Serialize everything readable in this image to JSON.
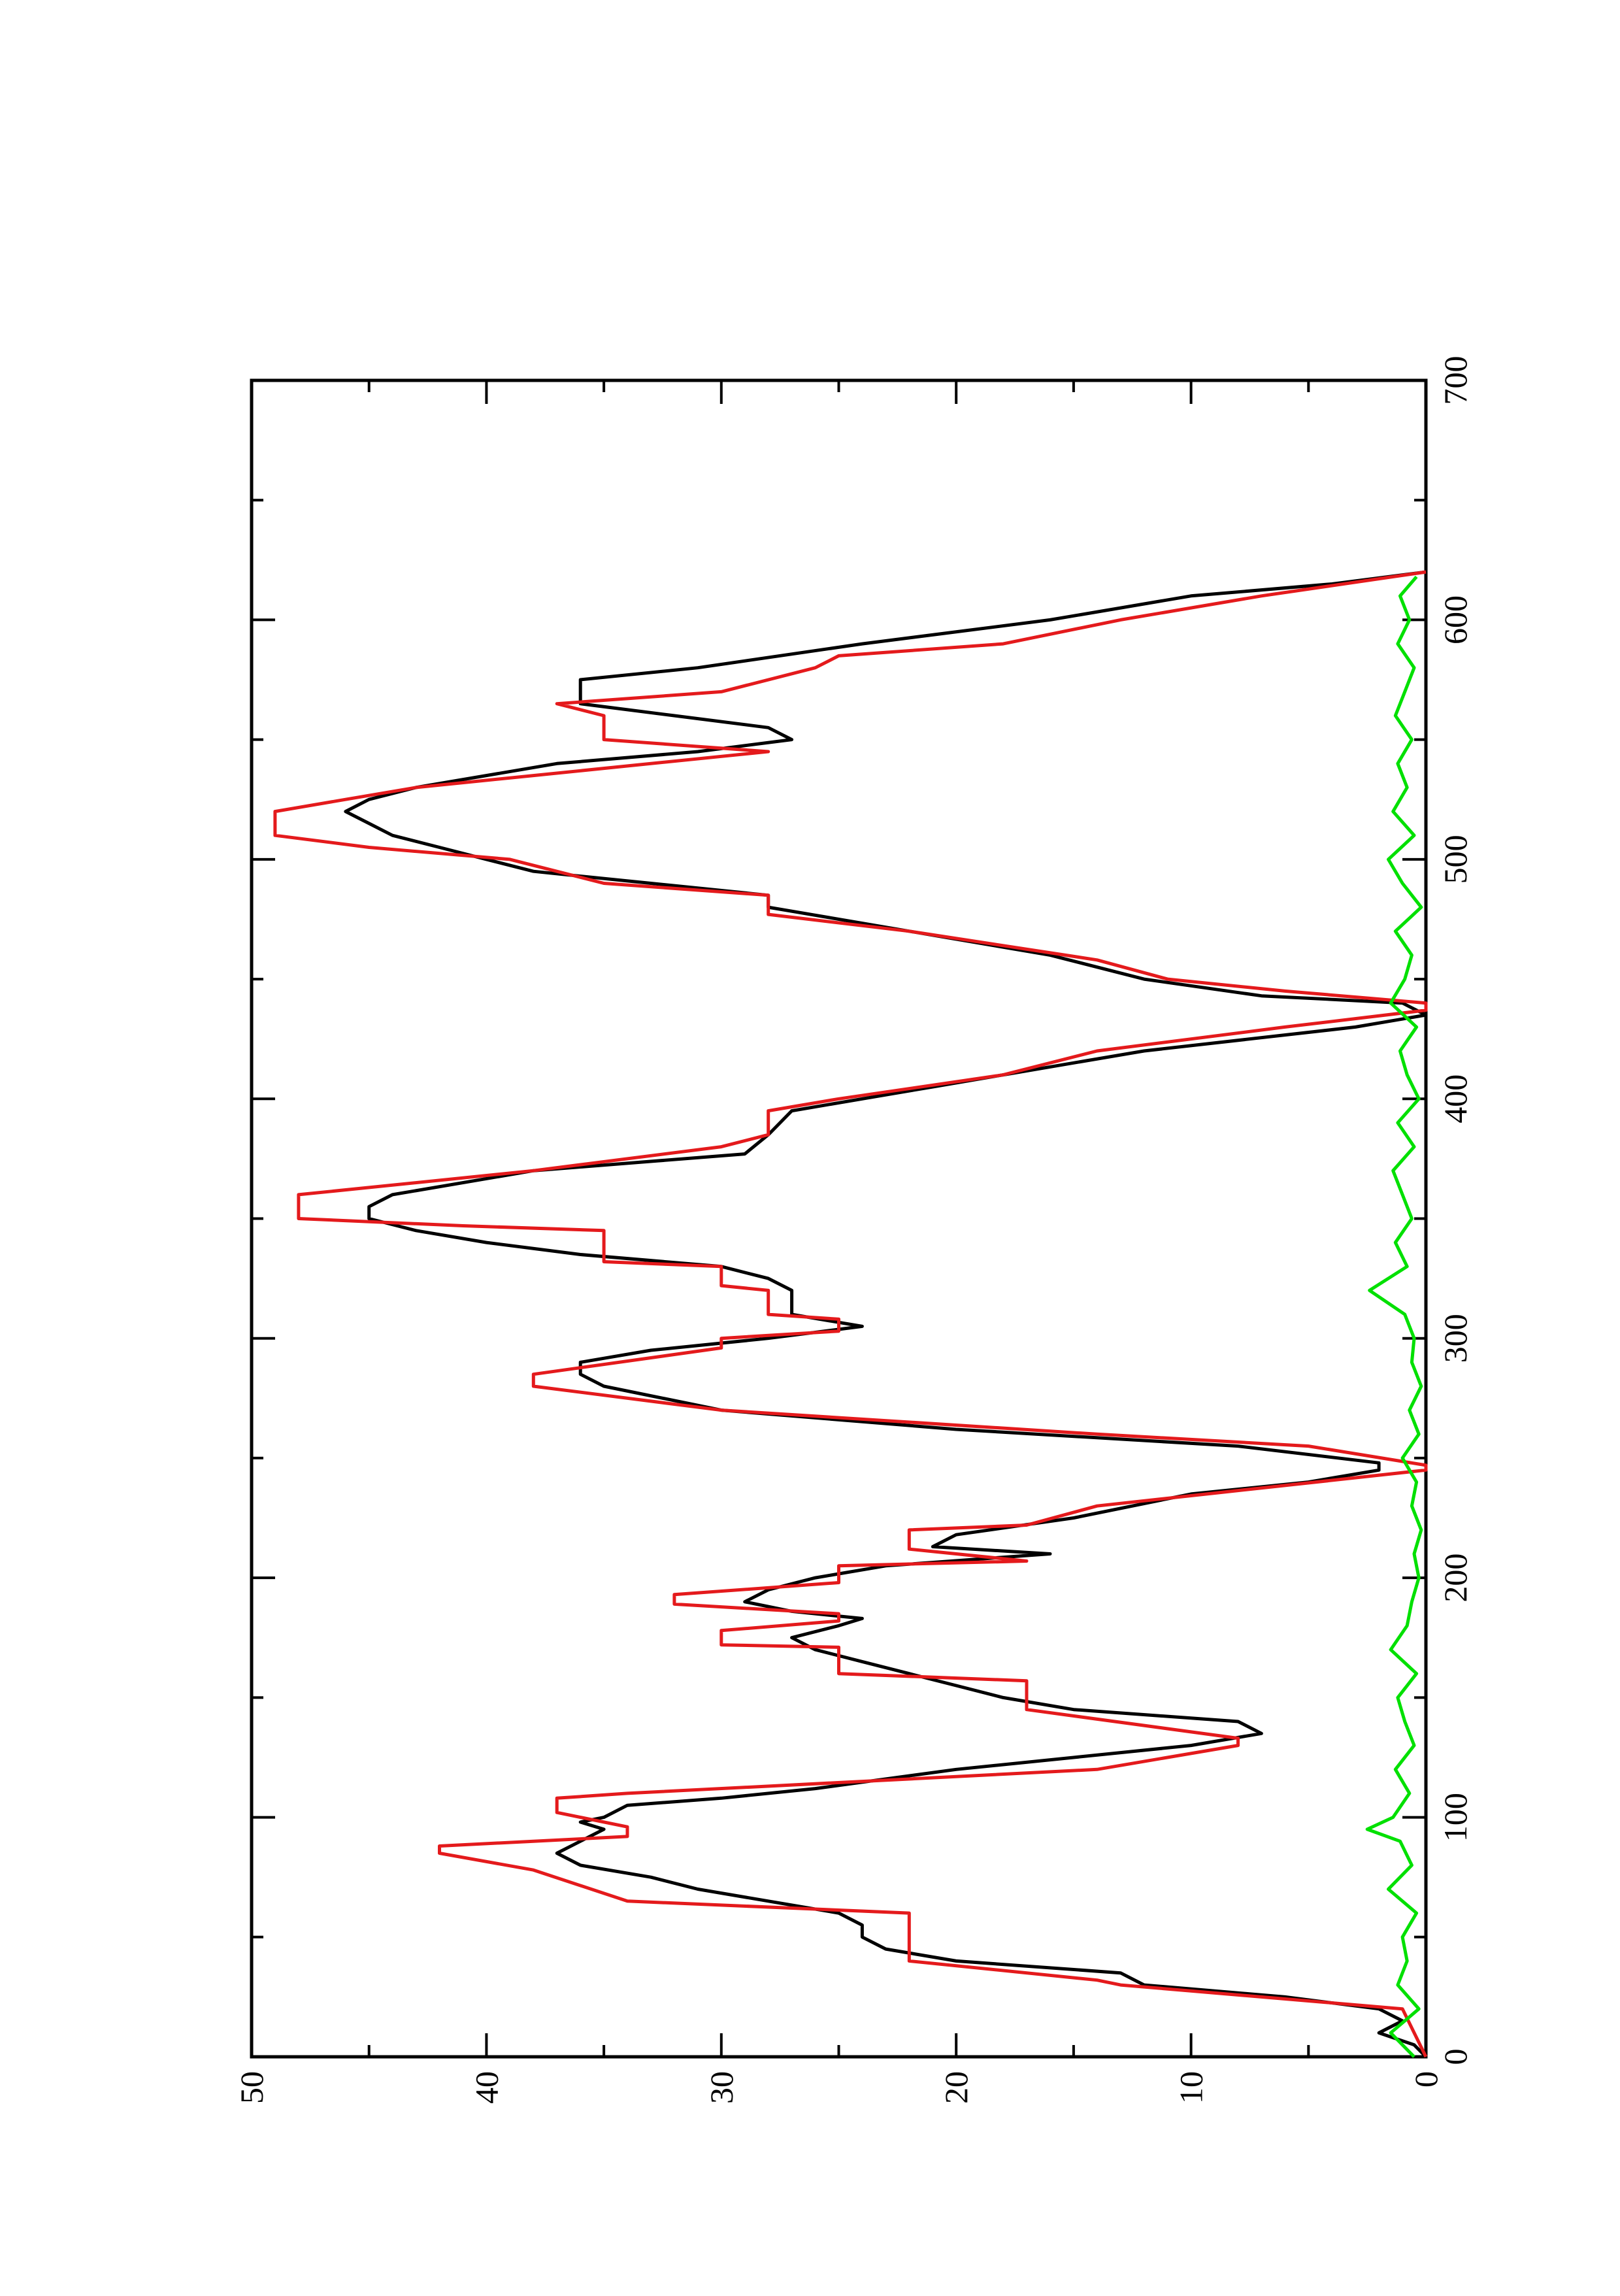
{
  "chart_data": {
    "type": "line",
    "xlim": [
      0,
      700
    ],
    "xticks": [
      0,
      100,
      200,
      300,
      400,
      500,
      600,
      700
    ],
    "xticks_minor": [
      50,
      150,
      250,
      350,
      450,
      550,
      650
    ],
    "ylim": [
      0,
      50
    ],
    "yticks": [
      0,
      10,
      20,
      30,
      40,
      50
    ],
    "yticks_minor": [
      5,
      15,
      25,
      35,
      45
    ],
    "rotated": true,
    "series": [
      {
        "color": "#000000",
        "x": [
          0,
          5,
          10,
          15,
          20,
          25,
          30,
          35,
          40,
          45,
          50,
          55,
          60,
          65,
          70,
          75,
          80,
          85,
          90,
          95,
          98,
          100,
          105,
          108,
          112,
          120,
          125,
          130,
          135,
          140,
          145,
          150,
          155,
          160,
          165,
          170,
          175,
          180,
          183,
          186,
          190,
          195,
          200,
          205,
          210,
          213,
          218,
          225,
          235,
          240,
          245,
          248,
          255,
          262,
          270,
          280,
          285,
          290,
          295,
          300,
          305,
          310,
          320,
          325,
          330,
          335,
          340,
          345,
          350,
          355,
          360,
          370,
          377,
          385,
          395,
          400,
          405,
          410,
          420,
          430,
          435,
          440,
          443,
          450,
          460,
          470,
          480,
          485,
          490,
          495,
          500,
          505,
          510,
          515,
          520,
          525,
          530,
          540,
          545,
          550,
          555,
          560,
          565,
          570,
          575,
          580,
          590,
          600,
          605,
          610,
          615,
          620
        ],
        "values": [
          0,
          0.5,
          2,
          1,
          2,
          6,
          12,
          13,
          20,
          23,
          24,
          24,
          25,
          28,
          31,
          33,
          36,
          37,
          36,
          35,
          36,
          35,
          34,
          30,
          26,
          20,
          15,
          10,
          7,
          8,
          15,
          18,
          20,
          22,
          24,
          26,
          27,
          25,
          24,
          27,
          29,
          28,
          26,
          23,
          16,
          21,
          20,
          15,
          10,
          5,
          2,
          2,
          8,
          20,
          30,
          35,
          36,
          36,
          33,
          28,
          24,
          27,
          27,
          28,
          30,
          36,
          40,
          43,
          45,
          45,
          44,
          38,
          29,
          28,
          27,
          24,
          21,
          18,
          12,
          3,
          0,
          1,
          7,
          12,
          16,
          22,
          28,
          28,
          33,
          38,
          40,
          42,
          44,
          45,
          46,
          45,
          43,
          37,
          31,
          27,
          28,
          32,
          36,
          36,
          36,
          31,
          24,
          16,
          13,
          10,
          4,
          0
        ]
      },
      {
        "color": "#e41a1c",
        "x": [
          0,
          20,
          30,
          32,
          40,
          60,
          65,
          78,
          85,
          88,
          90,
          92,
          96,
          102,
          108,
          110,
          120,
          130,
          133,
          145,
          157,
          160,
          171,
          172,
          178,
          182,
          185,
          189,
          193,
          198,
          205,
          207,
          212,
          220,
          222,
          230,
          245,
          247,
          255,
          260,
          270,
          280,
          285,
          296,
          300,
          303,
          308,
          310,
          320,
          322,
          330,
          332,
          345,
          347,
          350,
          360,
          370,
          380,
          385,
          395,
          400,
          410,
          420,
          430,
          437,
          440,
          445,
          450,
          458,
          470,
          477,
          485,
          490,
          500,
          505,
          510,
          520,
          525,
          530,
          535,
          545,
          550,
          560,
          565,
          570,
          580,
          585,
          590,
          600,
          610,
          620
        ],
        "values": [
          0,
          1,
          13,
          14,
          22,
          22,
          34,
          38,
          42,
          42,
          38,
          34,
          34,
          37,
          37,
          34,
          14,
          8,
          8,
          17,
          17,
          25,
          25,
          30,
          30,
          25,
          25,
          32,
          32,
          25,
          25,
          17,
          22,
          22,
          17,
          14,
          0,
          0,
          5,
          14,
          30,
          38,
          38,
          30,
          30,
          25,
          25,
          28,
          28,
          30,
          30,
          35,
          35,
          41,
          48,
          48,
          38,
          30,
          28,
          28,
          25,
          18,
          14,
          6,
          0,
          0,
          6,
          11,
          14,
          22,
          28,
          28,
          35,
          39,
          45,
          49,
          49,
          46,
          43,
          38,
          28,
          35,
          35,
          37,
          30,
          26,
          25,
          18,
          13,
          7,
          0
        ]
      },
      {
        "color": "#00e000",
        "x": [
          0,
          10,
          20,
          30,
          40,
          50,
          60,
          70,
          80,
          90,
          95,
          100,
          110,
          120,
          130,
          140,
          150,
          160,
          170,
          180,
          190,
          200,
          210,
          220,
          230,
          240,
          250,
          260,
          270,
          280,
          290,
          300,
          310,
          320,
          330,
          340,
          350,
          360,
          370,
          380,
          390,
          400,
          410,
          420,
          430,
          440,
          450,
          460,
          470,
          480,
          490,
          500,
          510,
          520,
          530,
          540,
          550,
          560,
          570,
          580,
          590,
          600,
          610,
          618
        ],
        "values": [
          0.5,
          1.5,
          0.3,
          1.2,
          0.8,
          1.0,
          0.4,
          1.6,
          0.6,
          1.1,
          2.5,
          1.4,
          0.7,
          1.3,
          0.5,
          0.9,
          1.2,
          0.4,
          1.5,
          0.8,
          0.6,
          0.3,
          0.5,
          0.2,
          0.6,
          0.4,
          1.0,
          0.3,
          0.7,
          0.2,
          0.6,
          0.5,
          0.9,
          2.4,
          0.8,
          1.3,
          0.6,
          1.0,
          1.4,
          0.5,
          1.2,
          0.3,
          0.8,
          1.1,
          0.4,
          1.5,
          0.9,
          0.6,
          1.3,
          0.2,
          1.0,
          1.6,
          0.5,
          1.4,
          0.8,
          1.2,
          0.6,
          1.3,
          0.9,
          0.5,
          1.2,
          0.7,
          1.1,
          0.4
        ]
      }
    ]
  }
}
